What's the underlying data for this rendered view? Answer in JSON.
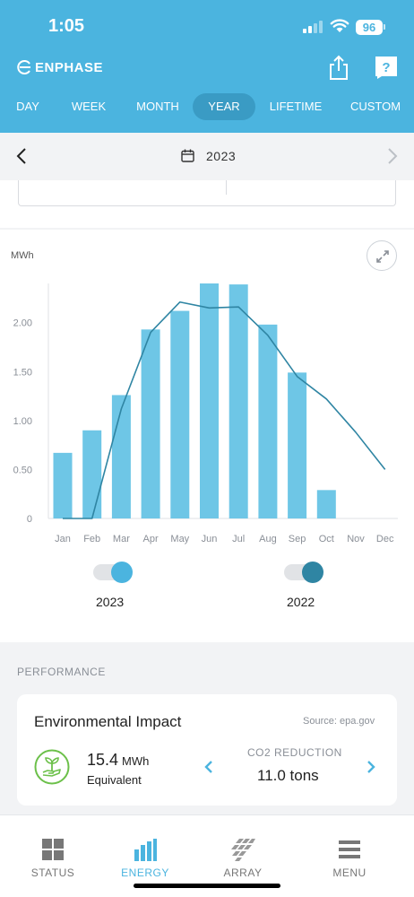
{
  "status_bar": {
    "time": "1:05",
    "battery": "96"
  },
  "header": {
    "brand": "ENPHASE",
    "tabs": [
      {
        "label": "DAY"
      },
      {
        "label": "WEEK"
      },
      {
        "label": "MONTH"
      },
      {
        "label": "YEAR",
        "active": true
      },
      {
        "label": "LIFETIME"
      },
      {
        "label": "CUSTOM"
      }
    ]
  },
  "date_nav": {
    "label": "2023"
  },
  "chart_data": {
    "type": "bar",
    "ylabel": "MWh",
    "ylim": [
      0,
      2.4
    ],
    "yticks": [
      "0",
      "0.50",
      "1.00",
      "1.50",
      "2.00"
    ],
    "ytick_values": [
      0,
      0.5,
      1.0,
      1.5,
      2.0
    ],
    "categories": [
      "Jan",
      "Feb",
      "Mar",
      "Apr",
      "May",
      "Jun",
      "Jul",
      "Aug",
      "Sep",
      "Oct",
      "Nov",
      "Dec"
    ],
    "series": [
      {
        "name": "2023",
        "type": "bar",
        "color": "#6ec6e6",
        "values": [
          0.67,
          0.9,
          1.26,
          1.93,
          2.12,
          2.4,
          2.39,
          1.98,
          1.49,
          0.29,
          null,
          null
        ]
      },
      {
        "name": "2022",
        "type": "line",
        "color": "#2f85a3",
        "values": [
          0,
          0,
          1.12,
          1.9,
          2.21,
          2.15,
          2.16,
          1.87,
          1.45,
          1.22,
          0.88,
          0.5
        ]
      }
    ],
    "legend": "bottom"
  },
  "legend": {
    "item_2023": "2023",
    "item_2022": "2022"
  },
  "performance": {
    "section_title": "PERFORMANCE",
    "card_title": "Environmental Impact",
    "source": "Source: epa.gov",
    "energy_value": "15.4",
    "energy_unit": "MWh",
    "equivalent_label": "Equivalent",
    "co2_label": "CO2 REDUCTION",
    "co2_value": "11.0 tons"
  },
  "bottom_nav": {
    "items": [
      {
        "label": "STATUS",
        "icon": "grid-icon"
      },
      {
        "label": "ENERGY",
        "icon": "bar-chart-icon",
        "active": true
      },
      {
        "label": "ARRAY",
        "icon": "solar-panel-icon"
      },
      {
        "label": "MENU",
        "icon": "menu-icon"
      }
    ]
  },
  "colors": {
    "header": "#4bb4df",
    "active_tab": "#3a9bc4",
    "bar": "#6ec6e6",
    "line": "#2f85a3",
    "leaf": "#6cc04a"
  }
}
